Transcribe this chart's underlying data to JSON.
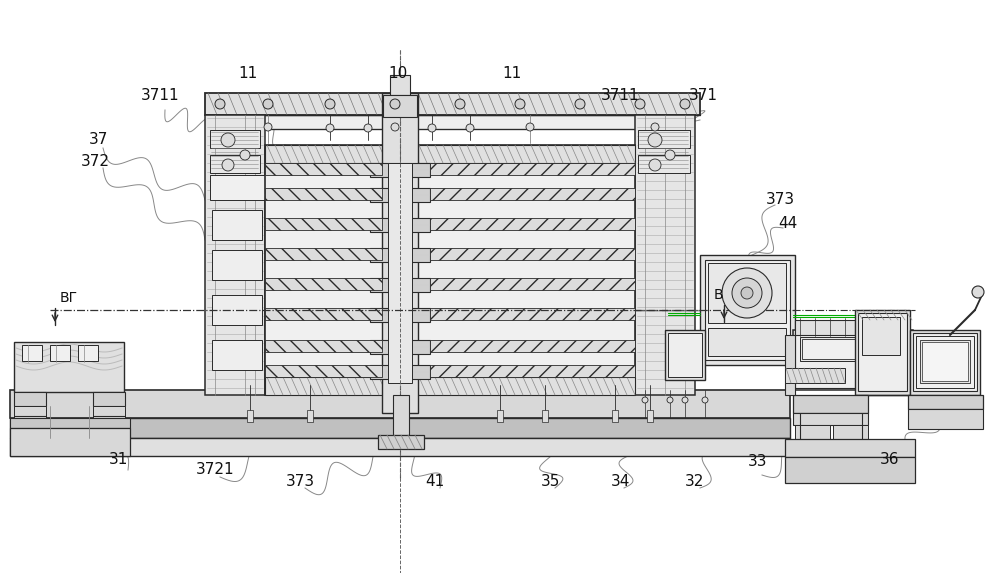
{
  "bg_color": "#ffffff",
  "lc": "#2a2a2a",
  "mg": "#888888",
  "lg": "#bbbbbb",
  "fc_light": "#f0f0f0",
  "fc_mid": "#e0e0e0",
  "fc_dark": "#c8c8c8",
  "hatch_fc": "#e8e8e8",
  "green": "#00aa00",
  "figsize": [
    10.0,
    5.73
  ],
  "dpi": 100
}
